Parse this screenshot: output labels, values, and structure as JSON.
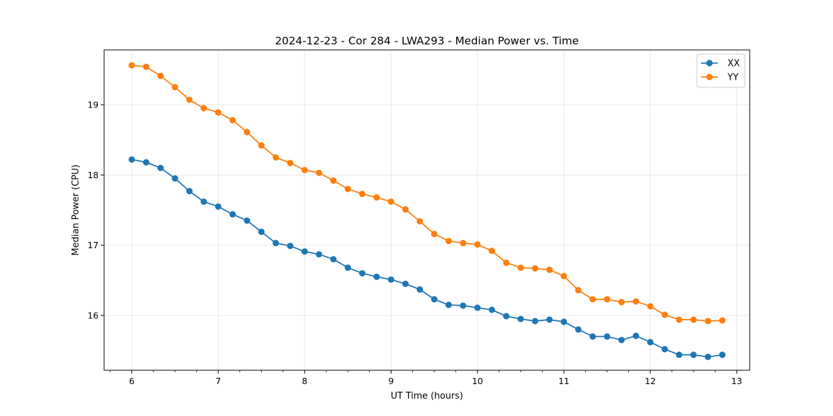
{
  "chart_data": {
    "type": "line",
    "title": "2024-12-23 - Cor 284 - LWA293 - Median Power vs. Time",
    "xlabel": "UT Time (hours)",
    "ylabel": "Median Power (CPU)",
    "xlim": [
      5.68,
      13.15
    ],
    "ylim": [
      15.22,
      19.78
    ],
    "xticks": [
      6,
      7,
      8,
      9,
      10,
      11,
      12,
      13
    ],
    "yticks": [
      16,
      17,
      18,
      19
    ],
    "grid": true,
    "legend_position": "top-right",
    "x": [
      6.0,
      6.1667,
      6.3333,
      6.5,
      6.6667,
      6.8333,
      7.0,
      7.1667,
      7.3333,
      7.5,
      7.6667,
      7.8333,
      8.0,
      8.1667,
      8.3333,
      8.5,
      8.6667,
      8.8333,
      9.0,
      9.1667,
      9.3333,
      9.5,
      9.6667,
      9.8333,
      10.0,
      10.1667,
      10.3333,
      10.5,
      10.6667,
      10.8333,
      11.0,
      11.1667,
      11.3333,
      11.5,
      11.6667,
      11.8333,
      12.0,
      12.1667,
      12.3333,
      12.5,
      12.6667,
      12.8333
    ],
    "series": [
      {
        "name": "XX",
        "color": "#1f77b4",
        "values": [
          18.22,
          18.18,
          18.1,
          17.95,
          17.77,
          17.62,
          17.55,
          17.44,
          17.35,
          17.19,
          17.03,
          16.99,
          16.91,
          16.87,
          16.8,
          16.68,
          16.6,
          16.55,
          16.51,
          16.45,
          16.37,
          16.23,
          16.15,
          16.14,
          16.11,
          16.08,
          15.99,
          15.95,
          15.92,
          15.94,
          15.91,
          15.8,
          15.7,
          15.7,
          15.65,
          15.71,
          15.62,
          15.52,
          15.44,
          15.44,
          15.41,
          15.44
        ]
      },
      {
        "name": "YY",
        "color": "#ff7f0e",
        "values": [
          19.56,
          19.54,
          19.41,
          19.25,
          19.07,
          18.95,
          18.89,
          18.78,
          18.61,
          18.42,
          18.25,
          18.17,
          18.07,
          18.03,
          17.92,
          17.8,
          17.73,
          17.68,
          17.62,
          17.51,
          17.34,
          17.16,
          17.06,
          17.03,
          17.01,
          16.92,
          16.75,
          16.68,
          16.67,
          16.65,
          16.56,
          16.36,
          16.23,
          16.23,
          16.19,
          16.2,
          16.13,
          16.01,
          15.94,
          15.94,
          15.92,
          15.93
        ]
      }
    ]
  }
}
